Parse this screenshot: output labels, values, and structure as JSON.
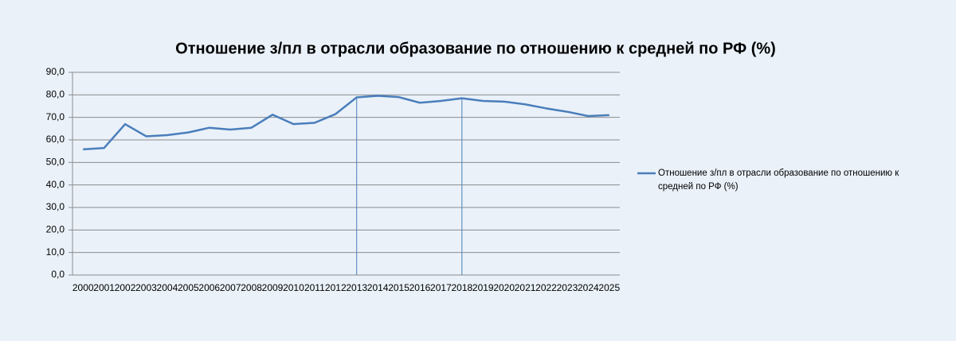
{
  "chart_data": {
    "type": "line",
    "title": "Отношение з/пл в отрасли образование по отношению к средней  по РФ (%)",
    "categories": [
      "2000",
      "2001",
      "2002",
      "2003",
      "2004",
      "2005",
      "2006",
      "2007",
      "2008",
      "2009",
      "2010",
      "2011",
      "2012",
      "2013",
      "2014",
      "2015",
      "2016",
      "2017",
      "2018",
      "2019",
      "2020",
      "2021",
      "2022",
      "2023",
      "2024",
      "2025"
    ],
    "series": [
      {
        "name": "Отношение з/пл в отрасли образование по отношению к средней  по РФ (%)",
        "color": "#4a7ebb",
        "values": [
          55.8,
          56.4,
          67.0,
          61.6,
          62.1,
          63.3,
          65.4,
          64.6,
          65.4,
          71.2,
          67.0,
          67.6,
          71.5,
          78.9,
          79.6,
          79.0,
          76.5,
          77.3,
          78.5,
          77.3,
          77.0,
          75.8,
          74.0,
          72.5,
          70.6,
          71.0
        ]
      }
    ],
    "drop_lines": [
      "2013",
      "2018"
    ],
    "ylim": [
      0,
      90
    ],
    "yticks": [
      {
        "value": 0,
        "label": "0,0"
      },
      {
        "value": 10,
        "label": "10,0"
      },
      {
        "value": 20,
        "label": "20,0"
      },
      {
        "value": 30,
        "label": "30,0"
      },
      {
        "value": 40,
        "label": "40,0"
      },
      {
        "value": 50,
        "label": "50,0"
      },
      {
        "value": 60,
        "label": "60,0"
      },
      {
        "value": 70,
        "label": "70,0"
      },
      {
        "value": 80,
        "label": "80,0"
      },
      {
        "value": 90,
        "label": "90,0"
      }
    ],
    "grid": true,
    "legend": "right"
  }
}
